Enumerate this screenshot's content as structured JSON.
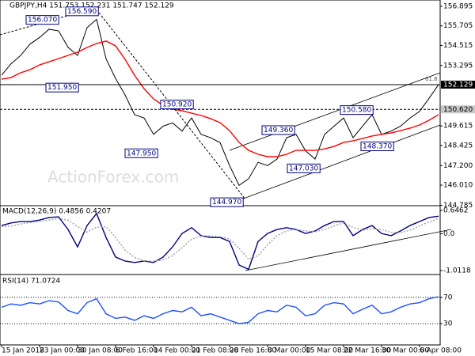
{
  "chart_data": [
    {
      "type": "line",
      "title": "GBPJPY,H4 151.753 152.231 151.747 152.129",
      "watermark": "ActionForex.com",
      "ylim": [
        144.76,
        157.28
      ],
      "yticks": [
        {
          "value": 156.895,
          "label": "156.895"
        },
        {
          "value": 155.705,
          "label": "155.705"
        },
        {
          "value": 154.515,
          "label": "154.515"
        },
        {
          "value": 153.295,
          "label": "153.295"
        },
        {
          "value": 149.615,
          "label": "149.615"
        },
        {
          "value": 148.425,
          "label": "148.425"
        },
        {
          "value": 147.2,
          "label": "147.200"
        },
        {
          "value": 146.01,
          "label": "146.010"
        },
        {
          "value": 144.785,
          "label": "144.785"
        }
      ],
      "levels": [
        {
          "value": 152.129,
          "label": "152.129",
          "style": "solid"
        },
        {
          "value": 150.62,
          "label": "150.620",
          "style": "dashed"
        }
      ],
      "fib_label": "61.8",
      "annotations": [
        {
          "value": 156.07,
          "label": "156.070"
        },
        {
          "value": 156.59,
          "label": "156.590"
        },
        {
          "value": 151.95,
          "label": "151.950"
        },
        {
          "value": 150.92,
          "label": "150.920"
        },
        {
          "value": 147.95,
          "label": "147.950"
        },
        {
          "value": 144.97,
          "label": "144.970"
        },
        {
          "value": 149.36,
          "label": "149.360"
        },
        {
          "value": 147.03,
          "label": "147.030"
        },
        {
          "value": 150.58,
          "label": "150.580"
        },
        {
          "value": 148.37,
          "label": "148.370"
        }
      ],
      "series": [
        {
          "color": "#000000",
          "values": [
            152.7,
            153.4,
            153.9,
            154.6,
            155.0,
            155.5,
            155.4,
            154.4,
            153.9,
            155.6,
            156.1,
            153.7,
            152.5,
            151.5,
            150.3,
            150.1,
            149.1,
            149.6,
            149.8,
            149.3,
            150.1,
            149.1,
            148.9,
            148.6,
            147.2,
            146.0,
            146.4,
            147.4,
            147.2,
            147.6,
            148.9,
            149.1,
            148.1,
            147.6,
            149.1,
            149.6,
            150.1,
            148.9,
            149.6,
            150.3,
            149.1,
            149.3,
            149.6,
            150.1,
            150.5,
            151.3,
            152.129
          ]
        },
        {
          "color": "#ff0000",
          "values": [
            152.46,
            152.56,
            152.85,
            153.04,
            153.33,
            153.52,
            153.71,
            153.91,
            154.1,
            154.39,
            154.63,
            154.78,
            154.49,
            153.67,
            152.7,
            151.88,
            151.26,
            150.87,
            150.63,
            150.54,
            150.39,
            150.25,
            150.06,
            149.81,
            149.33,
            148.61,
            148.13,
            147.89,
            147.74,
            147.74,
            147.89,
            148.13,
            148.13,
            148.13,
            148.22,
            148.37,
            148.61,
            148.71,
            148.85,
            149.0,
            149.1,
            149.19,
            149.33,
            149.48,
            149.67,
            149.96,
            150.3
          ]
        }
      ]
    },
    {
      "type": "line",
      "title": "MACD(12,26,9) 0.4856 0.4207",
      "ylim": [
        -1.121,
        0.733
      ],
      "yticks": [
        0.6462,
        {
          "value": 0,
          "label": "0.0"
        },
        -1.0118
      ],
      "series": [
        {
          "color": "#000080",
          "values": [
            0.23,
            0.3,
            0.34,
            0.34,
            0.38,
            0.45,
            0.47,
            0.12,
            -0.36,
            0.23,
            0.56,
            -0.1,
            -0.64,
            -0.75,
            -0.79,
            -0.75,
            -0.79,
            -0.64,
            -0.36,
            0.01,
            0.17,
            -0.05,
            -0.1,
            -0.1,
            -0.21,
            -0.86,
            -0.98,
            -0.21,
            0.01,
            0.12,
            0.17,
            0.12,
            0.01,
            0.08,
            0.23,
            0.34,
            0.34,
            -0.05,
            0.12,
            0.23,
            0.01,
            -0.05,
            0.08,
            0.23,
            0.34,
            0.45,
            0.4856
          ]
        },
        {
          "color": "#a0a0a0",
          "values": [
            0.2,
            0.22,
            0.27,
            0.31,
            0.34,
            0.38,
            0.42,
            0.38,
            0.2,
            0.05,
            0.18,
            0.2,
            -0.1,
            -0.45,
            -0.65,
            -0.74,
            -0.76,
            -0.72,
            -0.6,
            -0.38,
            -0.15,
            -0.05,
            -0.06,
            -0.08,
            -0.14,
            -0.4,
            -0.7,
            -0.6,
            -0.3,
            -0.05,
            0.08,
            0.12,
            0.08,
            0.06,
            0.12,
            0.22,
            0.3,
            0.18,
            0.1,
            0.15,
            0.12,
            0.04,
            0.03,
            0.1,
            0.22,
            0.33,
            0.4207
          ]
        }
      ]
    },
    {
      "type": "line",
      "title": "RSI(14) 71.0724",
      "ylim": [
        0,
        100
      ],
      "yticks": [
        70,
        30
      ],
      "categories": [
        "15 Jan 2018",
        null,
        null,
        null,
        "23 Jan 00:00",
        null,
        null,
        null,
        "30 Jan 08:00",
        null,
        null,
        null,
        "6 Feb 16:00",
        null,
        null,
        null,
        "14 Feb 00:00",
        null,
        null,
        null,
        "21 Feb 08:00",
        null,
        null,
        null,
        "28 Feb 16:00",
        null,
        null,
        null,
        "8 Mar 00:00",
        null,
        null,
        null,
        "15 Mar 08:00",
        null,
        null,
        null,
        "22 Mar 16:00",
        null,
        null,
        null,
        "30 Mar 00:00",
        null,
        null,
        null,
        "6 Apr 08:00",
        null,
        null
      ],
      "series": [
        {
          "color": "#1e50ff",
          "values": [
            55,
            60,
            58,
            62,
            60,
            65,
            63,
            50,
            45,
            62,
            68,
            45,
            38,
            40,
            35,
            42,
            38,
            45,
            50,
            48,
            55,
            42,
            45,
            40,
            35,
            30,
            32,
            45,
            50,
            48,
            58,
            55,
            42,
            45,
            58,
            62,
            60,
            45,
            52,
            58,
            45,
            48,
            55,
            60,
            62,
            68,
            71.0724
          ]
        }
      ]
    }
  ]
}
